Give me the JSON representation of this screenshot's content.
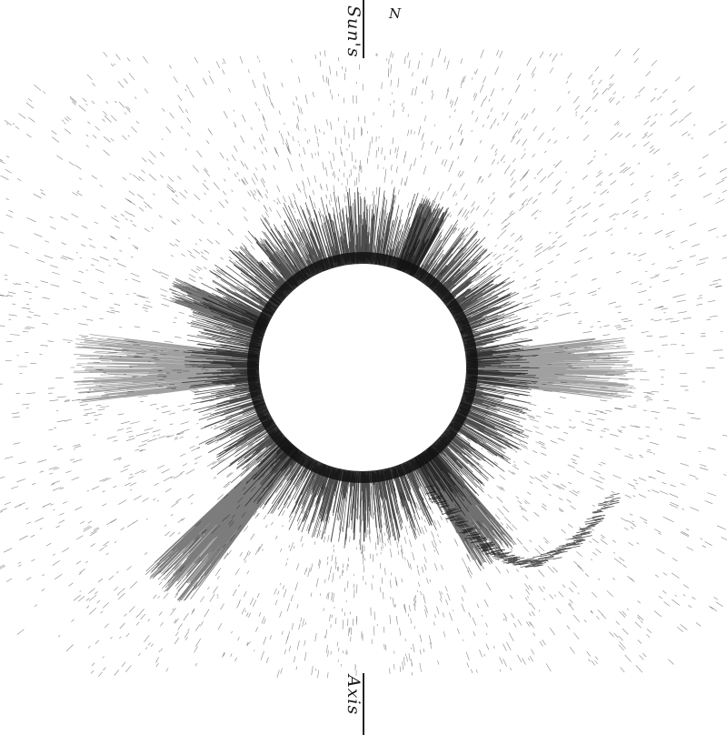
{
  "figure": {
    "north_label": "N",
    "axis_label_top": "Sun's",
    "axis_label_bottom": "Axis"
  },
  "colors": {
    "background": "#ffffff",
    "ink": "#111111",
    "disk": "#ffffff"
  }
}
